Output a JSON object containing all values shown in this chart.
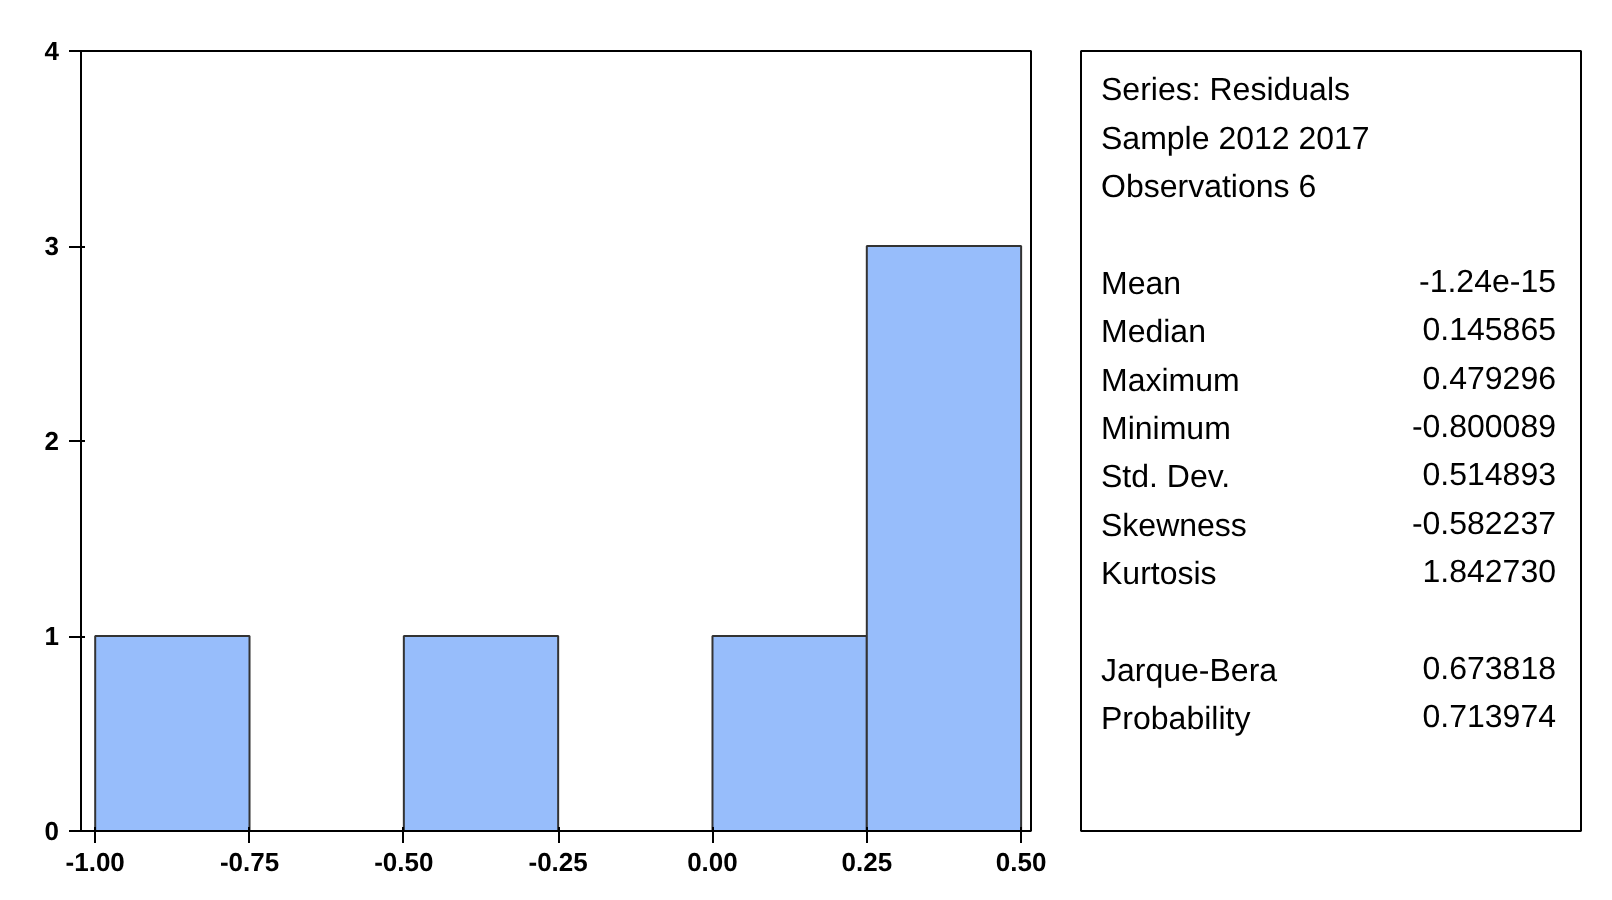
{
  "chart_data": [
    {
      "type": "histogram",
      "bins": [
        -1.0,
        -0.75,
        -0.5,
        -0.25,
        0.0,
        0.25,
        0.5
      ],
      "values": [
        1,
        0,
        1,
        0,
        1,
        3
      ],
      "color": "#97bdfb",
      "xlim": [
        -1.023,
        0.516
      ],
      "ylim": [
        0,
        4
      ],
      "xticks": [
        {
          "value": -1.0,
          "label": "-1.00"
        },
        {
          "value": -0.75,
          "label": "-0.75"
        },
        {
          "value": -0.5,
          "label": "-0.50"
        },
        {
          "value": -0.25,
          "label": "-0.25"
        },
        {
          "value": 0.0,
          "label": "0.00"
        },
        {
          "value": 0.25,
          "label": "0.25"
        },
        {
          "value": 0.5,
          "label": "0.50"
        }
      ],
      "yticks": [
        0,
        1,
        2,
        3,
        4
      ],
      "grid": false
    },
    {
      "type": "other",
      "annotations": [
        "Series: Residuals",
        "Sample 2012 2017",
        "Observations 6",
        "Mean\t-1.24e-15",
        "Median\t0.145865",
        "Maximum\t0.479296",
        "Minimum\t-0.800089",
        "Std. Dev.\t0.514893",
        "Skewness\t-0.582237",
        "Kurtosis\t1.842730",
        "Jarque-Bera\t0.673818",
        "Probability\t0.713974"
      ]
    }
  ]
}
